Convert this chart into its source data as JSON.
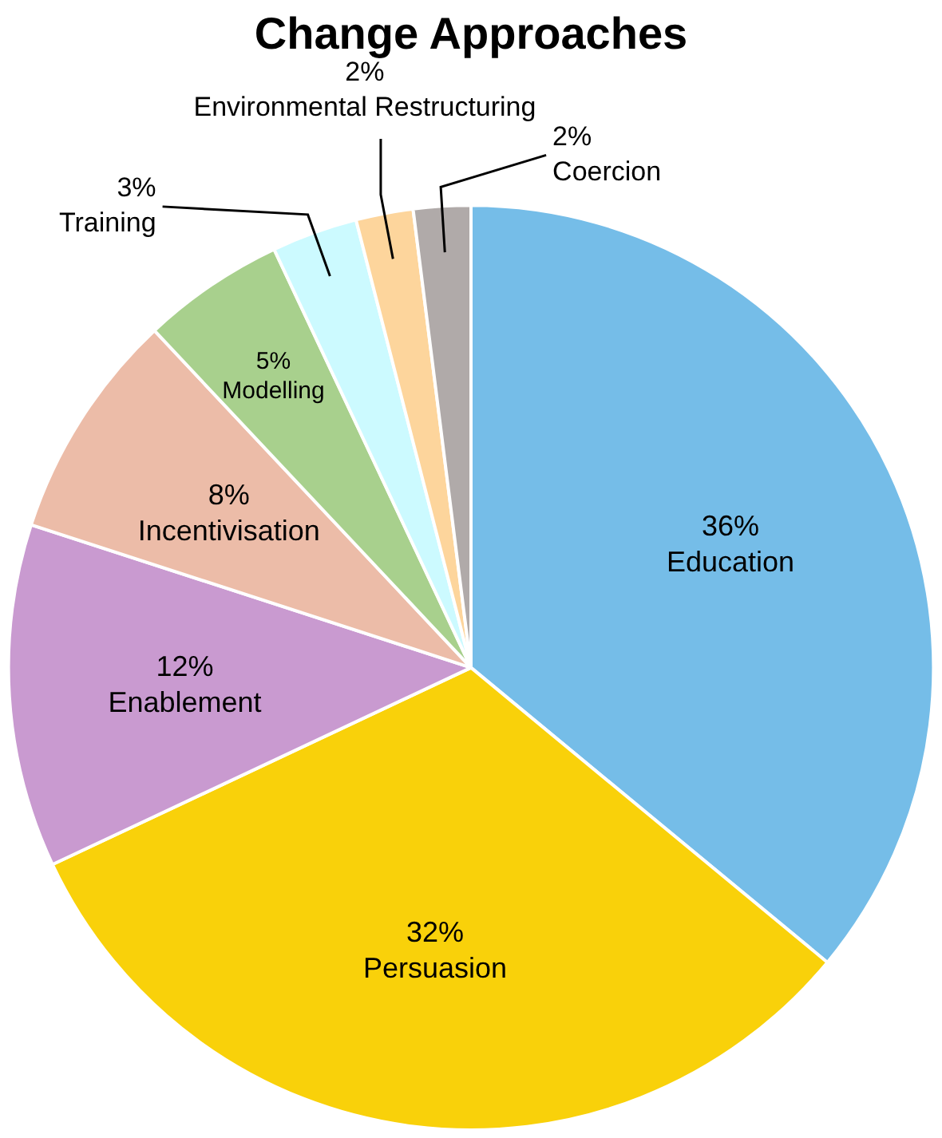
{
  "chart_data": {
    "type": "pie",
    "title": "Change Approaches",
    "categories": [
      "Education",
      "Persuasion",
      "Enablement",
      "Incentivisation",
      "Modelling",
      "Training",
      "Environmental Restructuring",
      "Coercion"
    ],
    "values": [
      36,
      32,
      12,
      8,
      5,
      3,
      2,
      2
    ],
    "value_labels": [
      "36%",
      "32%",
      "12%",
      "8%",
      "5%",
      "3%",
      "2%",
      "2%"
    ],
    "colors": [
      "#75bde8",
      "#f9d10a",
      "#c99ad0",
      "#ecbca8",
      "#a8d08d",
      "#ccfaff",
      "#fdd59c",
      "#b0aaa9"
    ],
    "legend": false
  }
}
